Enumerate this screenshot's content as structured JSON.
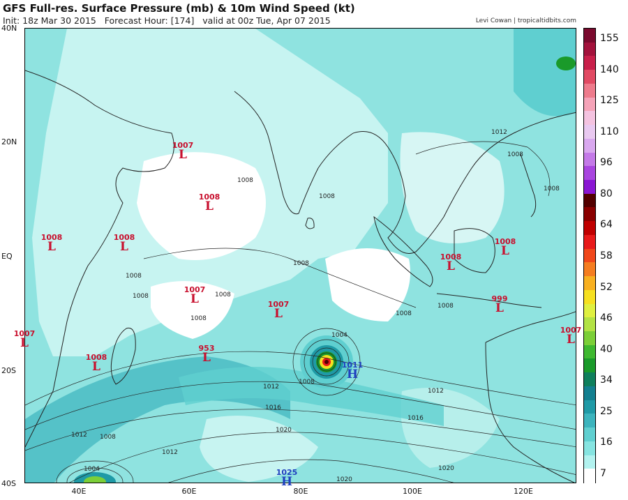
{
  "header": {
    "title": "GFS Full-res. Surface Pressure (mb) & 10m Wind Speed (kt)",
    "init": "Init: 18z Mar 30 2015",
    "forecast_hour": "Forecast Hour: [174]",
    "valid": "valid at 00z Tue, Apr 07 2015",
    "credit": "Levi Cowan | tropicaltidbits.com"
  },
  "axes": {
    "lat_labels": [
      "40N",
      "20N",
      "EQ",
      "20S",
      "40S"
    ],
    "lon_labels": [
      "40E",
      "60E",
      "80E",
      "100E",
      "120E"
    ]
  },
  "colorbar": {
    "labels": [
      "155",
      "140",
      "125",
      "110",
      "96",
      "80",
      "64",
      "58",
      "52",
      "46",
      "40",
      "34",
      "25",
      "16",
      "7"
    ],
    "colors": [
      "#7a0a2e",
      "#a3123c",
      "#c81f4a",
      "#e14a63",
      "#ee7b8c",
      "#f5a3b8",
      "#f4c3e0",
      "#e9c9f0",
      "#d9a8ef",
      "#c47ae8",
      "#a945e0",
      "#8a16d3",
      "#520000",
      "#8a0000",
      "#c00000",
      "#e81a1a",
      "#f0471a",
      "#f57d20",
      "#f8b020",
      "#f6e020",
      "#dff040",
      "#b3e244",
      "#7ccf38",
      "#3fb830",
      "#1a9a2a",
      "#0f7f5c",
      "#137f8f",
      "#1f9aa6",
      "#3cb4bd",
      "#5fcfd0",
      "#86e4e1",
      "#b2f2ef",
      "#ffffff"
    ]
  },
  "systems": [
    {
      "type": "L",
      "value": "1007"
    },
    {
      "type": "L",
      "value": "1008"
    },
    {
      "type": "L",
      "value": "1008"
    },
    {
      "type": "L",
      "value": "1008"
    },
    {
      "type": "L",
      "value": "1007"
    },
    {
      "type": "L",
      "value": "1007"
    },
    {
      "type": "L",
      "value": "1007"
    },
    {
      "type": "L",
      "value": "953"
    },
    {
      "type": "L",
      "value": "1008"
    },
    {
      "type": "L",
      "value": "1008"
    },
    {
      "type": "L",
      "value": "1008"
    },
    {
      "type": "L",
      "value": "999"
    },
    {
      "type": "L",
      "value": "1007"
    },
    {
      "type": "H",
      "value": "1011"
    },
    {
      "type": "H",
      "value": "1025"
    }
  ],
  "isobar_labels": [
    "1008",
    "1008",
    "1008",
    "1008",
    "1008",
    "1008",
    "1008",
    "1008",
    "1008",
    "1012",
    "1008",
    "1004",
    "1012",
    "1016",
    "1012",
    "1016",
    "1020",
    "1020",
    "1012",
    "1008",
    "1012",
    "1004",
    "1020",
    "1008",
    "1008"
  ]
}
